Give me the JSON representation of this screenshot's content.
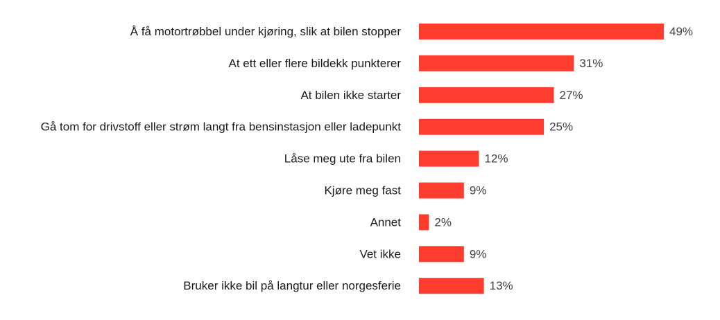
{
  "chart_data": {
    "type": "bar",
    "orientation": "horizontal",
    "bar_color": "#ff3d2e",
    "categories": [
      "Å få motortrøbbel under kjøring, slik at bilen stopper",
      "At ett eller flere bildekk punkterer",
      "At bilen ikke starter",
      "Gå tom for drivstoff eller strøm langt fra bensinstasjon eller ladepunkt",
      "Låse meg ute fra bilen",
      "Kjøre meg fast",
      "Annet",
      "Vet ikke",
      "Bruker ikke bil på langtur eller norgesferie"
    ],
    "values": [
      49,
      31,
      27,
      25,
      12,
      9,
      2,
      9,
      13
    ],
    "value_labels": [
      "49%",
      "31%",
      "27%",
      "25%",
      "12%",
      "9%",
      "2%",
      "9%",
      "13%"
    ],
    "xlim": [
      0,
      49
    ],
    "grid": false,
    "legend": "none"
  }
}
